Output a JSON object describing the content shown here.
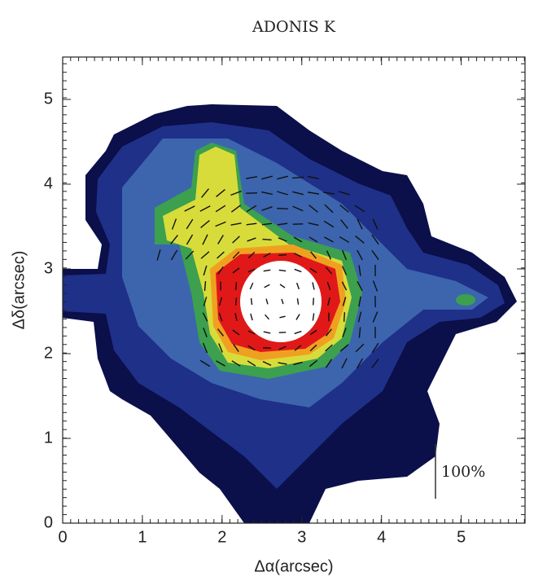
{
  "chart_data": {
    "type": "image",
    "title": "ADONIS K",
    "xlabel": "Δα(arcsec)",
    "ylabel": "Δδ(arcsec)",
    "xlim": [
      0,
      5.8
    ],
    "ylim": [
      0,
      5.5
    ],
    "xticks": [
      0,
      1,
      2,
      3,
      4,
      5
    ],
    "yticks": [
      0,
      1,
      2,
      3,
      4,
      5
    ],
    "annotation": "100%"
  }
}
